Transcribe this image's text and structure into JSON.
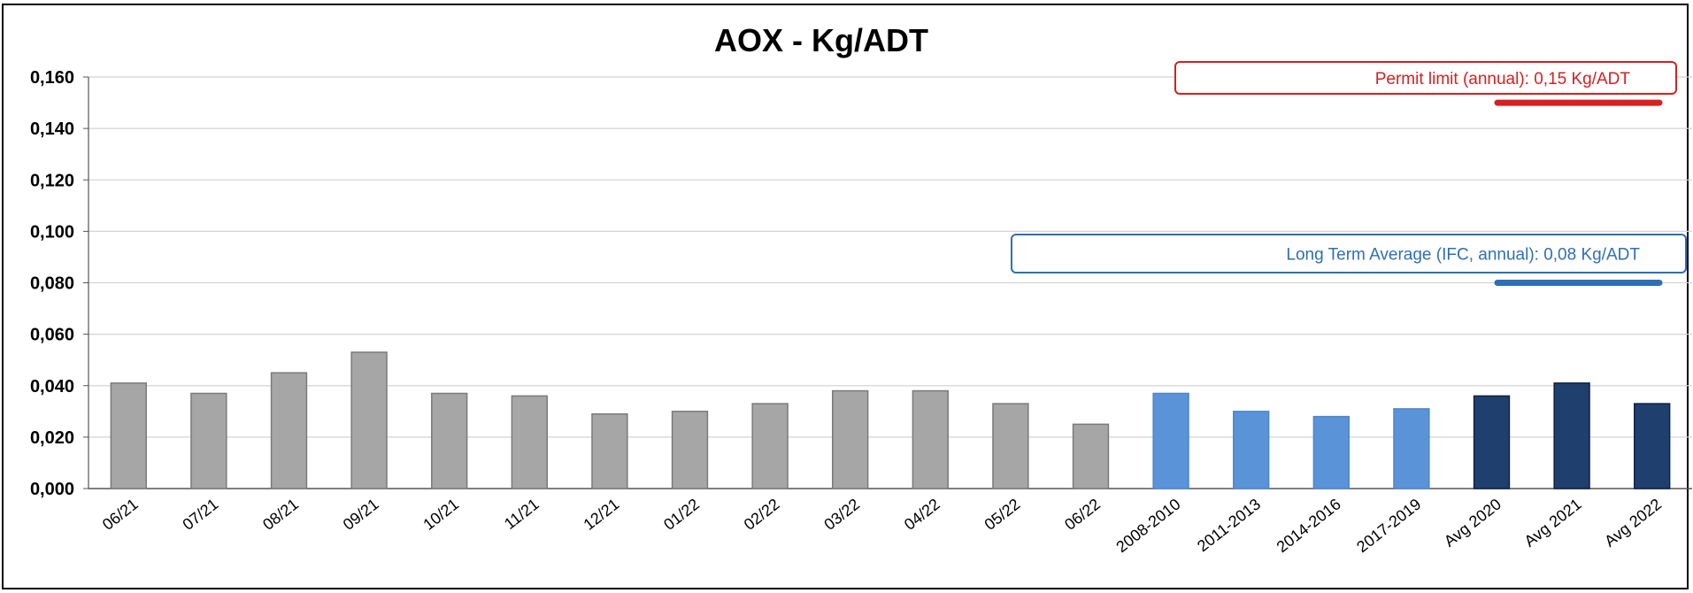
{
  "chart_data": {
    "type": "bar",
    "title": "AOX - Kg/ADT",
    "xlabel": "",
    "ylabel": "",
    "ylim": [
      0,
      0.16
    ],
    "yticks": [
      0,
      0.02,
      0.04,
      0.06,
      0.08,
      0.1,
      0.12,
      0.14,
      0.16
    ],
    "ytick_labels": [
      "0,000",
      "0,020",
      "0,040",
      "0,060",
      "0,080",
      "0,100",
      "0,120",
      "0,140",
      "0,160"
    ],
    "grid": true,
    "categories": [
      "06/21",
      "07/21",
      "08/21",
      "09/21",
      "10/21",
      "11/21",
      "12/21",
      "01/22",
      "02/22",
      "03/22",
      "04/22",
      "05/22",
      "06/22",
      "2008-2010",
      "2011-2013",
      "2014-2016",
      "2017-2019",
      "Avg 2020",
      "Avg 2021",
      "Avg 2022"
    ],
    "values": [
      0.041,
      0.037,
      0.045,
      0.053,
      0.037,
      0.036,
      0.029,
      0.03,
      0.033,
      0.038,
      0.038,
      0.033,
      0.025,
      0.037,
      0.03,
      0.028,
      0.031,
      0.036,
      0.041,
      0.033
    ],
    "bar_colors": [
      "#a6a6a6",
      "#a6a6a6",
      "#a6a6a6",
      "#a6a6a6",
      "#a6a6a6",
      "#a6a6a6",
      "#a6a6a6",
      "#a6a6a6",
      "#a6a6a6",
      "#a6a6a6",
      "#a6a6a6",
      "#a6a6a6",
      "#a6a6a6",
      "#5b93d8",
      "#5b93d8",
      "#5b93d8",
      "#5b93d8",
      "#1f3f6e",
      "#1f3f6e",
      "#1f3f6e"
    ],
    "annotations": [
      {
        "text": "Permit limit (annual): 0,15 Kg/ADT",
        "value": 0.15,
        "color": "#d62020"
      },
      {
        "text": "Long Term Average (IFC, annual): 0,08 Kg/ADT",
        "value": 0.08,
        "color": "#2e6fb5"
      }
    ]
  }
}
